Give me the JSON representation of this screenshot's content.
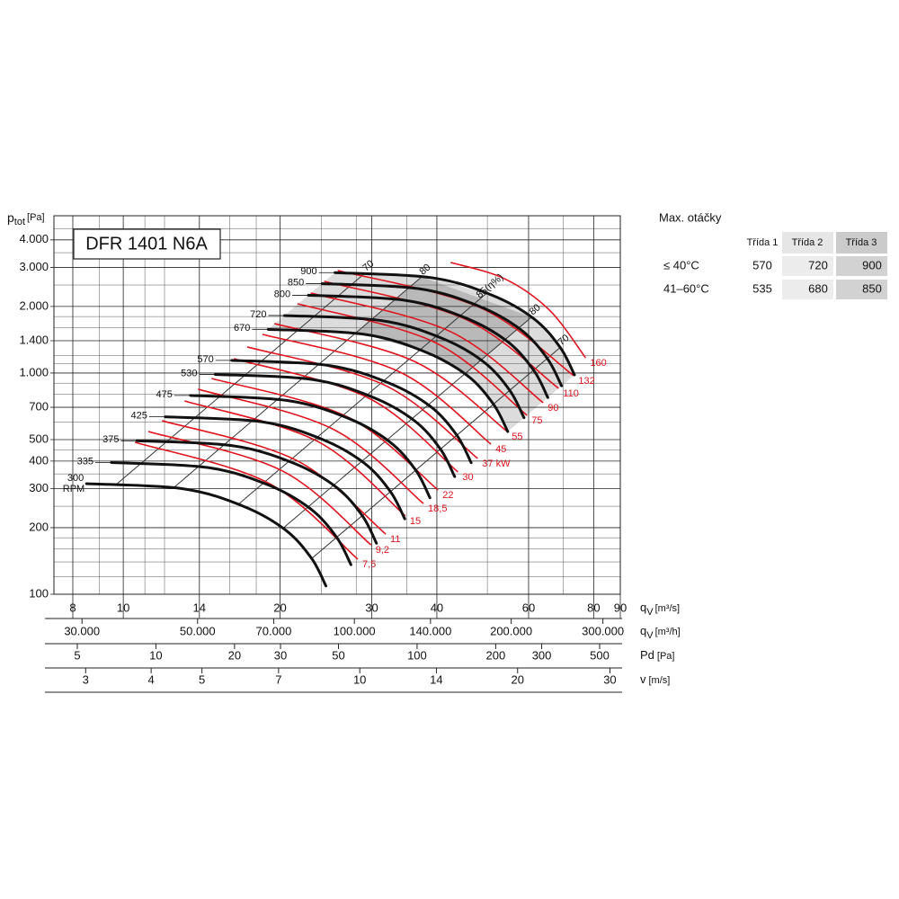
{
  "chart_data": {
    "type": "line",
    "title": "DFR 1401 N6A",
    "ylabel": {
      "symbol": "p",
      "sub": "tot",
      "unit": "[Pa]"
    },
    "xlabel": {
      "symbol": "q",
      "sub": "V",
      "unit": "[m³/s]"
    },
    "log_x": true,
    "log_y": true,
    "grid": true,
    "xlim": [
      7.36,
      90
    ],
    "xticks": [
      8,
      10,
      14,
      20,
      30,
      40,
      60,
      80,
      90
    ],
    "xgrid_minor": [
      9,
      11,
      12,
      16,
      18,
      24,
      28,
      35,
      50,
      70
    ],
    "ylim": [
      100,
      5140
    ],
    "yticks": [
      100,
      200,
      300,
      400,
      500,
      700,
      {
        "value": 1000,
        "label": "1.000"
      },
      {
        "value": 1400,
        "label": "1.400"
      },
      {
        "value": 2000,
        "label": "2.000"
      },
      {
        "value": 3000,
        "label": "3.000"
      },
      {
        "value": 4000,
        "label": "4.000"
      }
    ],
    "ygrid_minor": [
      120,
      140,
      160,
      180,
      250,
      350,
      450,
      600,
      800,
      900,
      1100,
      1200,
      1600,
      1800,
      2500,
      3500,
      4500
    ],
    "x2label": {
      "symbol": "q",
      "sub": "V",
      "unit": "[m³/h]"
    },
    "x2lim": [
      26500,
      324000
    ],
    "x2ticks": [
      {
        "value": 30000,
        "label": "30.000"
      },
      {
        "value": 50000,
        "label": "50.000"
      },
      {
        "value": 70000,
        "label": "70.000"
      },
      {
        "value": 100000,
        "label": "100.000"
      },
      {
        "value": 140000,
        "label": "140.000"
      },
      {
        "value": 200000,
        "label": "200.000"
      },
      {
        "value": 300000,
        "label": "300.000"
      }
    ],
    "pd_label": {
      "symbol": "Pd",
      "unit": "[Pa]"
    },
    "pd_lim": [
      4.07,
      600
    ],
    "pd_ticks": [
      5,
      10,
      20,
      30,
      50,
      100,
      200,
      300,
      500
    ],
    "v_label": {
      "symbol": "v",
      "unit": "[m/s]"
    },
    "v_lim": [
      2.61,
      31.4
    ],
    "v_ticks": [
      3,
      4,
      5,
      7,
      10,
      14,
      20,
      30
    ],
    "rpm_unit": "RPM",
    "zone_colors": [
      "#dcdcdc",
      "#b9b9b9"
    ],
    "series": [
      {
        "name": "300",
        "color": "#111111",
        "x": [
          8.5,
          13,
          17,
          20.5,
          23,
          24.5
        ],
        "values": [
          316,
          300,
          250,
          195,
          145,
          109
        ]
      },
      {
        "name": "335",
        "color": "#111111",
        "x": [
          9.49,
          14.52,
          18.98,
          22.89,
          25.68,
          27.36
        ],
        "values": [
          394,
          374,
          312,
          243,
          181,
          136
        ]
      },
      {
        "name": "375",
        "color": "#111111",
        "x": [
          10.63,
          16.25,
          21.25,
          25.63,
          28.75,
          30.63
        ],
        "values": [
          494,
          469,
          391,
          305,
          227,
          170
        ]
      },
      {
        "name": "425",
        "color": "#111111",
        "x": [
          12.04,
          18.42,
          24.08,
          29.04,
          32.58,
          34.71
        ],
        "values": [
          634,
          602,
          502,
          391,
          291,
          219
        ]
      },
      {
        "name": "475",
        "color": "#111111",
        "x": [
          13.46,
          20.58,
          26.92,
          32.46,
          36.42,
          38.79
        ],
        "values": [
          792,
          752,
          627,
          489,
          364,
          273
        ]
      },
      {
        "name": "530",
        "color": "#111111",
        "x": [
          15.02,
          22.97,
          30.03,
          36.22,
          40.63,
          43.28
        ],
        "values": [
          986,
          936,
          780,
          609,
          453,
          340
        ]
      },
      {
        "name": "570",
        "color": "#111111",
        "x": [
          16.15,
          24.7,
          32.3,
          38.95,
          43.7,
          46.55
        ],
        "values": [
          1141,
          1083,
          903,
          704,
          523,
          393
        ]
      },
      {
        "name": "670",
        "color": "#111111",
        "x": [
          18.98,
          29.03,
          37.97,
          45.78,
          51.37,
          54.72
        ],
        "values": [
          1576,
          1496,
          1247,
          973,
          723,
          544
        ]
      },
      {
        "name": "720",
        "color": "#111111",
        "x": [
          20.4,
          31.2,
          40.8,
          49.2,
          55.2,
          58.8
        ],
        "values": [
          1820,
          1728,
          1440,
          1123,
          835,
          628
        ]
      },
      {
        "name": "800",
        "color": "#111111",
        "x": [
          22.67,
          34.67,
          45.33,
          54.67,
          61.33,
          65.33
        ],
        "values": [
          2247,
          2133,
          1778,
          1387,
          1031,
          775
        ]
      },
      {
        "name": "850",
        "color": "#111111",
        "x": [
          24.08,
          36.83,
          48.17,
          58.08,
          65.17,
          69.42
        ],
        "values": [
          2537,
          2408,
          2007,
          1565,
          1164,
          875
        ]
      },
      {
        "name": "900",
        "color": "#111111",
        "x": [
          25.5,
          39,
          51,
          61.5,
          69,
          73.5
        ],
        "values": [
          2844,
          2700,
          2250,
          1755,
          1305,
          981
        ]
      }
    ],
    "power_curves": [
      {
        "name": "7,5",
        "color": "#e0141e",
        "x": [
          10.53,
          19.0,
          28.2
        ],
        "values": [
          486,
          318,
          144
        ]
      },
      {
        "name": "9,2",
        "color": "#e0141e",
        "x": [
          11.17,
          20.2,
          29.9
        ],
        "values": [
          544,
          361,
          167
        ]
      },
      {
        "name": "11",
        "color": "#e0141e",
        "x": [
          11.87,
          21.5,
          31.9
        ],
        "values": [
          609,
          403,
          187
        ]
      },
      {
        "name": "15",
        "color": "#e0141e",
        "x": [
          13.11,
          23.6,
          34.8
        ],
        "values": [
          748,
          491,
          226
        ]
      },
      {
        "name": "18,5",
        "color": "#e0141e",
        "x": [
          13.92,
          25.3,
          37.7
        ],
        "values": [
          845,
          557,
          257
        ]
      },
      {
        "name": "22",
        "color": "#e0141e",
        "x": [
          14.78,
          27.0,
          40.2
        ],
        "values": [
          945,
          632,
          296
        ]
      },
      {
        "name": "30",
        "color": "#e0141e",
        "x": [
          16.3,
          29.6,
          43.9
        ],
        "values": [
          1161,
          770,
          357
        ]
      },
      {
        "name": "37 kW",
        "color": "#e0141e",
        "x": [
          17.3,
          31.9,
          47.9
        ],
        "values": [
          1312,
          877,
          411
        ]
      },
      {
        "name": "45",
        "color": "#e0141e",
        "x": [
          18.5,
          34.0,
          50.8
        ],
        "values": [
          1496,
          1009,
          477
        ]
      },
      {
        "name": "55",
        "color": "#e0141e",
        "x": [
          19.5,
          36.2,
          54.6
        ],
        "values": [
          1673,
          1129,
          544
        ]
      },
      {
        "name": "75",
        "color": "#e0141e",
        "x": [
          21.6,
          39.7,
          59.6
        ],
        "values": [
          2056,
          1374,
          644
        ]
      },
      {
        "name": "90",
        "color": "#e0141e",
        "x": [
          22.9,
          42.5,
          64.0
        ],
        "values": [
          2300,
          1538,
          734
        ]
      },
      {
        "name": "110",
        "color": "#e0141e",
        "x": [
          24.3,
          45.3,
          68.5
        ],
        "values": [
          2598,
          1753,
          853
        ]
      },
      {
        "name": "132",
        "color": "#e0141e",
        "x": [
          25.8,
          48.3,
          73.3
        ],
        "values": [
          2907,
          1980,
          972
        ]
      },
      {
        "name": "160",
        "color": "#e0141e",
        "x": [
          42.5,
          53.9,
          65.8,
          77.2
        ],
        "values": [
          3162,
          2672,
          1925,
          1172
        ]
      }
    ],
    "efficiency_lines": [
      {
        "name": "70",
        "color": "#333333",
        "x": [
          29.1,
          9.7
        ],
        "values": [
          2826,
          314
        ]
      },
      {
        "name": "80",
        "color": "#333333",
        "x": [
          37.4,
          12.47
        ],
        "values": [
          2720,
          302
        ]
      },
      {
        "name": "85(η%)",
        "color": "#333333",
        "x": [
          49.8,
          16.6
        ],
        "values": [
          2290,
          254
        ]
      },
      {
        "name": "80",
        "color": "#333333",
        "x": [
          60.8,
          20.27
        ],
        "values": [
          1790,
          199
        ]
      },
      {
        "name": "70",
        "color": "#333333",
        "x": [
          69.0,
          23.0
        ],
        "values": [
          1305,
          145
        ]
      }
    ]
  },
  "speed_table": {
    "title": "Max. otáčky",
    "columns": [
      "Třída 1",
      "Třída 2",
      "Třída 3"
    ],
    "rows": [
      {
        "label": "≤ 40°C",
        "values": [
          570,
          720,
          900
        ]
      },
      {
        "label": "41–60°C",
        "values": [
          535,
          680,
          850
        ]
      }
    ]
  }
}
